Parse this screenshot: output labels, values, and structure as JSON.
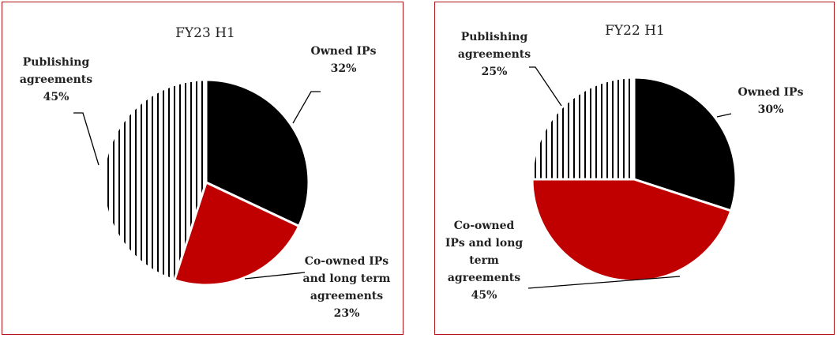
{
  "chart_data": [
    {
      "type": "pie",
      "title": "FY23 H1",
      "slices": [
        {
          "label": [
            "Owned IPs",
            "32%"
          ],
          "value": 32,
          "color": "#000000",
          "pattern": "solid"
        },
        {
          "label": [
            "Co-owned IPs",
            "and long term",
            "agreements",
            "23%"
          ],
          "value": 23,
          "color": "#c00000",
          "pattern": "solid"
        },
        {
          "label": [
            "Publishing",
            "agreements",
            "45%"
          ],
          "value": 45,
          "color": "#000000",
          "pattern": "vertical-stripes"
        }
      ]
    },
    {
      "type": "pie",
      "title": "FY22 H1",
      "slices": [
        {
          "label": [
            "Owned IPs",
            "30%"
          ],
          "value": 30,
          "color": "#000000",
          "pattern": "solid"
        },
        {
          "label": [
            "Co-owned",
            "IPs and long",
            "term",
            "agreements",
            "45%"
          ],
          "value": 45,
          "color": "#c00000",
          "pattern": "solid"
        },
        {
          "label": [
            "Publishing",
            "agreements",
            "25%"
          ],
          "value": 25,
          "color": "#000000",
          "pattern": "vertical-stripes"
        }
      ]
    }
  ]
}
